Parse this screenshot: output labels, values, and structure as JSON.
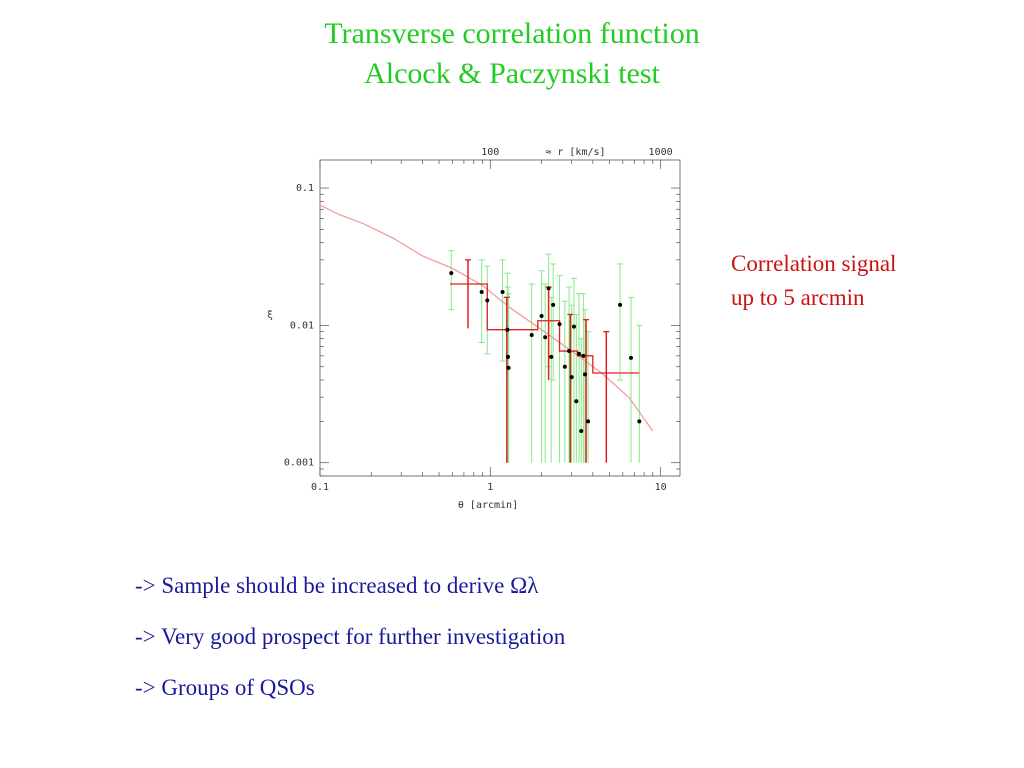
{
  "slide": {
    "title_line1": "Transverse correlation function",
    "title_line2": "Alcock & Paczynski test",
    "side_note_line1": "Correlation signal",
    "side_note_line2": "up to 5 arcmin",
    "bullets": [
      "-> Sample should be increased to derive Ωλ",
      "-> Very good prospect for further investigation",
      "-> Groups of QSOs"
    ]
  },
  "colors": {
    "title": "#22cc22",
    "side_note": "#cc1111",
    "bullets": "#1a1a99",
    "model_curve": "#f0a0a0",
    "binned": "#e02020",
    "errorbars": "#88e888",
    "points": "#000000"
  },
  "chart_data": {
    "type": "scatter",
    "xscale": "log",
    "yscale": "log",
    "xlim": [
      0.1,
      13
    ],
    "ylim": [
      0.0008,
      0.16
    ],
    "xlabel": "θ [arcmin]",
    "ylabel": "ξ",
    "top_axis_label": "≈ r [km/s]",
    "top_ticks": [
      {
        "label": "100",
        "theta": 1.0
      },
      {
        "label": "1000",
        "theta": 10.0
      }
    ],
    "xticks": [
      {
        "label": "0.1",
        "value": 0.1
      },
      {
        "label": "1",
        "value": 1
      },
      {
        "label": "10",
        "value": 10
      }
    ],
    "yticks": [
      {
        "label": "0.1",
        "value": 0.1
      },
      {
        "label": "0.01",
        "value": 0.01
      },
      {
        "label": "0.001",
        "value": 0.001
      }
    ],
    "series": [
      {
        "kind": "points",
        "points": [
          {
            "x": 0.59,
            "y": 0.024,
            "lo": 0.013,
            "hi": 0.035
          },
          {
            "x": 0.89,
            "y": 0.0175,
            "lo": 0.0075,
            "hi": 0.03
          },
          {
            "x": 0.96,
            "y": 0.0152,
            "lo": 0.0062,
            "hi": 0.027
          },
          {
            "x": 1.18,
            "y": 0.0175,
            "lo": 0.0055,
            "hi": 0.03
          },
          {
            "x": 1.26,
            "y": 0.0093,
            "lo": 0.001,
            "hi": 0.024
          },
          {
            "x": 1.27,
            "y": 0.0059,
            "lo": 0.001,
            "hi": 0.019
          },
          {
            "x": 1.28,
            "y": 0.0049,
            "lo": 0.001,
            "hi": 0.017
          },
          {
            "x": 1.75,
            "y": 0.0085,
            "lo": 0.001,
            "hi": 0.02
          },
          {
            "x": 2.0,
            "y": 0.0117,
            "lo": 0.001,
            "hi": 0.025
          },
          {
            "x": 2.1,
            "y": 0.0082,
            "lo": 0.001,
            "hi": 0.02
          },
          {
            "x": 2.2,
            "y": 0.0186,
            "lo": 0.005,
            "hi": 0.033
          },
          {
            "x": 2.28,
            "y": 0.0059,
            "lo": 0.001,
            "hi": 0.016
          },
          {
            "x": 2.34,
            "y": 0.0141,
            "lo": 0.004,
            "hi": 0.028
          },
          {
            "x": 2.55,
            "y": 0.0102,
            "lo": 0.001,
            "hi": 0.023
          },
          {
            "x": 2.74,
            "y": 0.005,
            "lo": 0.001,
            "hi": 0.015
          },
          {
            "x": 2.9,
            "y": 0.0065,
            "lo": 0.001,
            "hi": 0.019
          },
          {
            "x": 3.0,
            "y": 0.0042,
            "lo": 0.001,
            "hi": 0.014
          },
          {
            "x": 3.1,
            "y": 0.0098,
            "lo": 0.001,
            "hi": 0.022
          },
          {
            "x": 3.2,
            "y": 0.0028,
            "lo": 0.001,
            "hi": 0.012
          },
          {
            "x": 3.32,
            "y": 0.0062,
            "lo": 0.001,
            "hi": 0.017
          },
          {
            "x": 3.42,
            "y": 0.0017,
            "lo": 0.001,
            "hi": 0.008
          },
          {
            "x": 3.52,
            "y": 0.006,
            "lo": 0.001,
            "hi": 0.017
          },
          {
            "x": 3.6,
            "y": 0.0044,
            "lo": 0.001,
            "hi": 0.013
          },
          {
            "x": 3.75,
            "y": 0.002,
            "lo": 0.001,
            "hi": 0.009
          },
          {
            "x": 5.78,
            "y": 0.0141,
            "lo": 0.004,
            "hi": 0.028
          },
          {
            "x": 6.7,
            "y": 0.0058,
            "lo": 0.001,
            "hi": 0.016
          },
          {
            "x": 7.5,
            "y": 0.002,
            "lo": 0.001,
            "hi": 0.01
          }
        ]
      },
      {
        "kind": "binned-histogram",
        "bins": [
          {
            "x0": 0.58,
            "x1": 0.96,
            "y": 0.02,
            "center": 0.74,
            "lo": 0.0095,
            "hi": 0.03
          },
          {
            "x0": 0.96,
            "x1": 1.9,
            "y": 0.0093,
            "center": 1.25,
            "lo": 0.001,
            "hi": 0.016
          },
          {
            "x0": 1.9,
            "x1": 2.55,
            "y": 0.0108,
            "center": 2.2,
            "lo": 0.004,
            "hi": 0.019
          },
          {
            "x0": 2.55,
            "x1": 3.25,
            "y": 0.0065,
            "center": 2.95,
            "lo": 0.001,
            "hi": 0.012
          },
          {
            "x0": 3.25,
            "x1": 4.0,
            "y": 0.006,
            "center": 3.65,
            "lo": 0.001,
            "hi": 0.011
          },
          {
            "x0": 4.0,
            "x1": 7.5,
            "y": 0.0045,
            "center": 4.8,
            "lo": 0.001,
            "hi": 0.009
          }
        ]
      },
      {
        "kind": "model-curve",
        "x": [
          0.1,
          0.13,
          0.18,
          0.27,
          0.4,
          0.6,
          0.9,
          1.3,
          2.0,
          3.0,
          4.5,
          6.5,
          9.0
        ],
        "y": [
          0.075,
          0.064,
          0.055,
          0.043,
          0.032,
          0.026,
          0.0195,
          0.0135,
          0.0093,
          0.0065,
          0.0045,
          0.003,
          0.0017
        ]
      }
    ]
  }
}
